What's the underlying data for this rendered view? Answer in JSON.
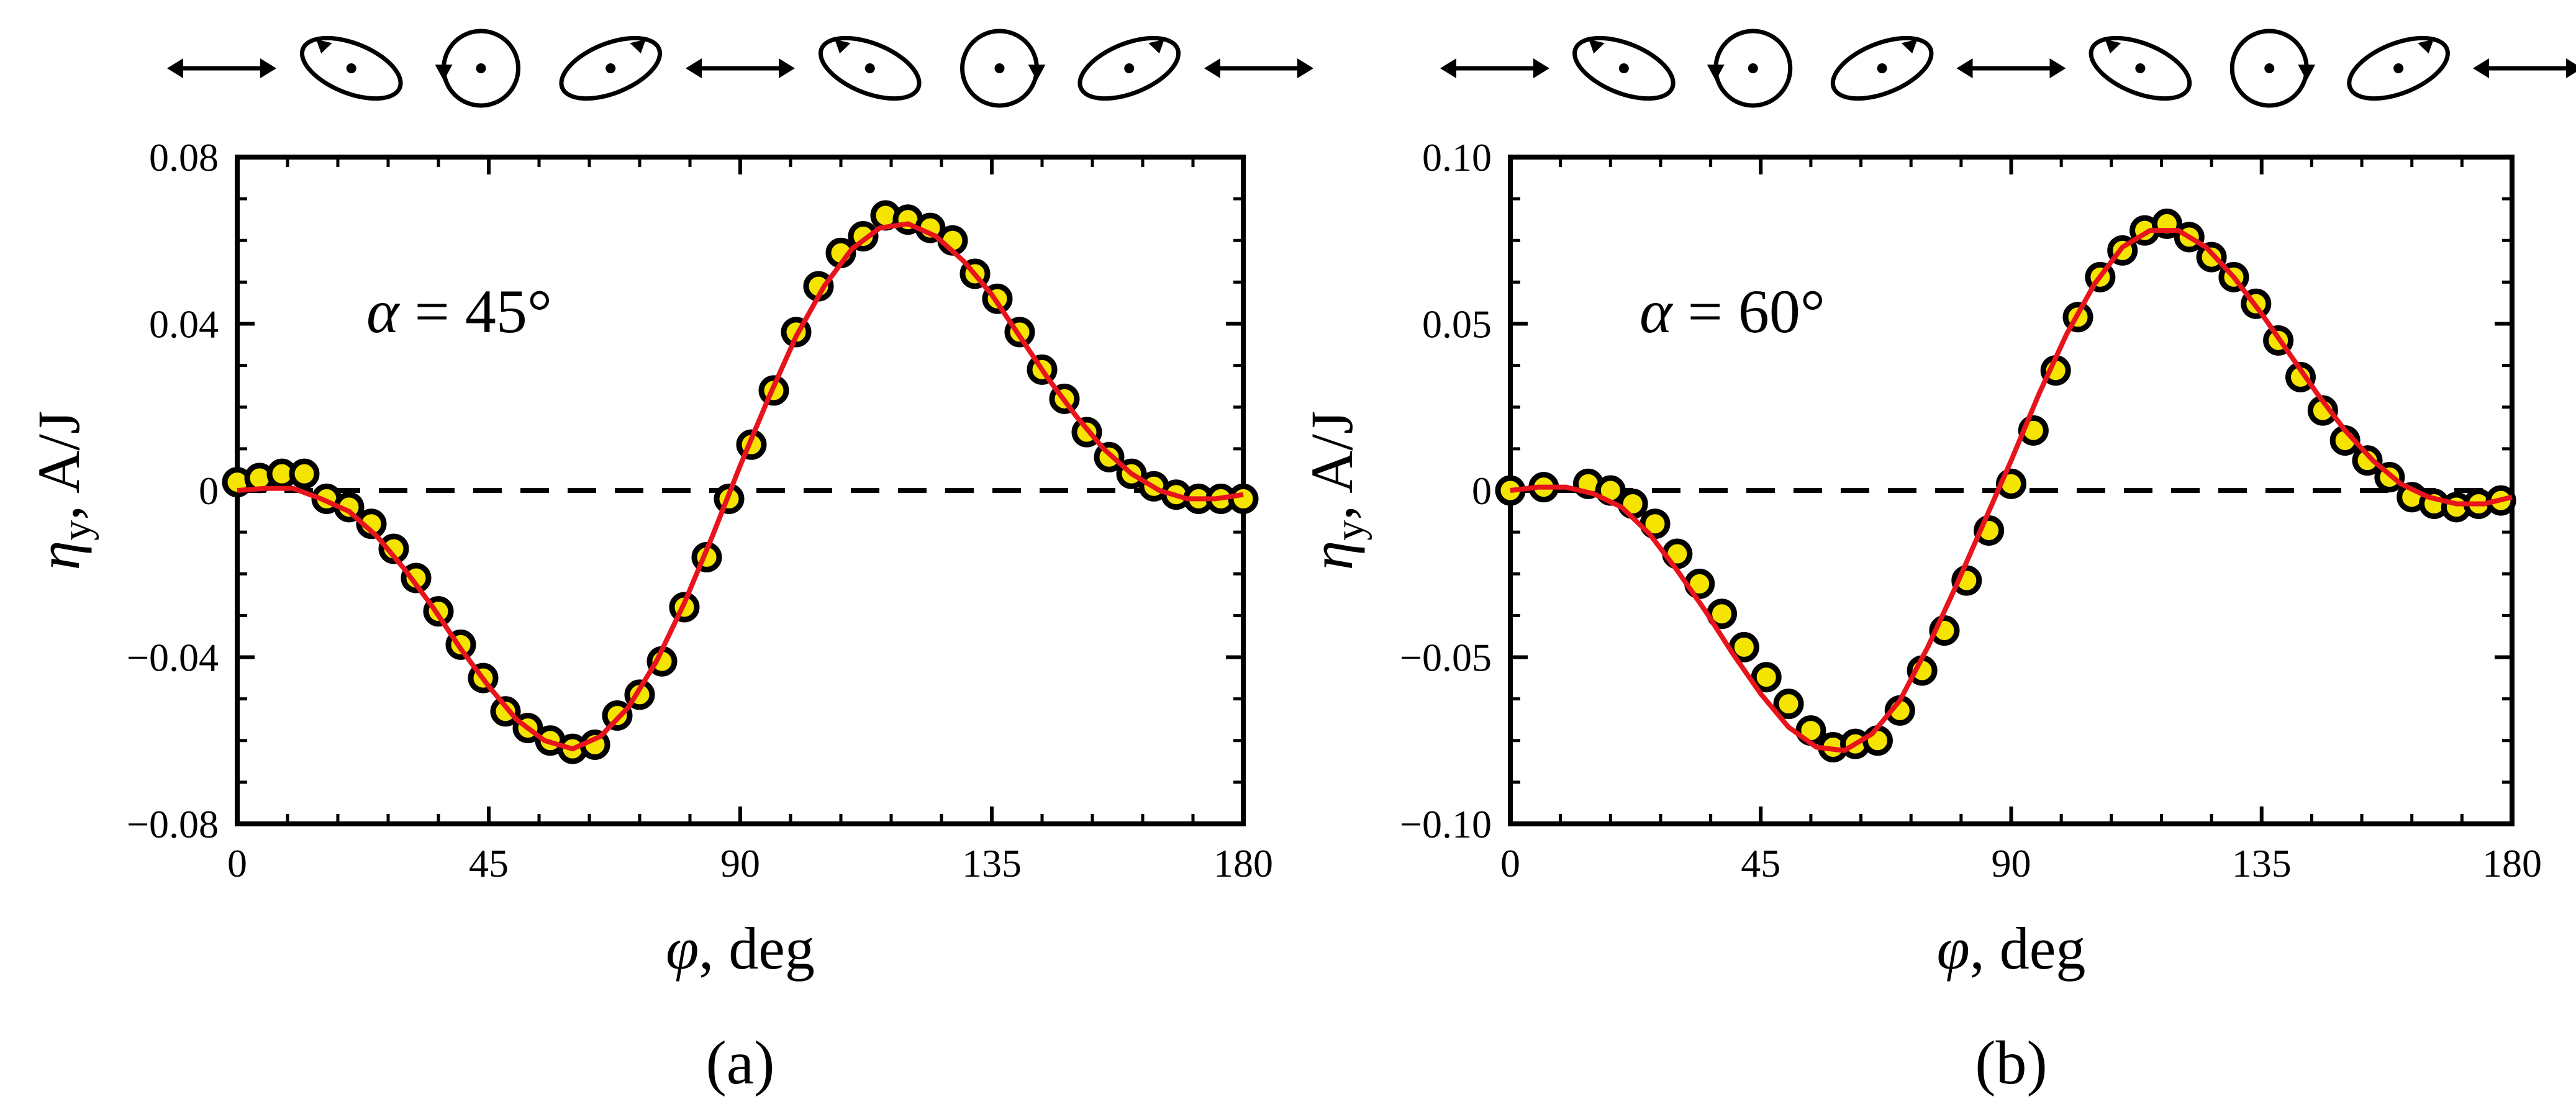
{
  "chart_data": [
    {
      "type": "scatter",
      "panel_label": "(a)",
      "annotation": {
        "symbol": "α",
        "text": " = 45°"
      },
      "xlabel": {
        "symbol": "φ",
        "text": ", deg"
      },
      "ylabel": {
        "symbol": "η",
        "sub": "y",
        "text": ", A/J"
      },
      "xlim": [
        0,
        180
      ],
      "ylim": [
        -0.08,
        0.08
      ],
      "xticks": [
        0,
        45,
        90,
        135,
        180
      ],
      "xtick_labels": [
        "0",
        "45",
        "90",
        "135",
        "180"
      ],
      "yticks": [
        -0.08,
        -0.04,
        0,
        0.04,
        0.08
      ],
      "ytick_labels": [
        "−0.08",
        "−0.04",
        "0",
        "0.04",
        "0.08"
      ],
      "reference_line": {
        "y": 0,
        "style": "dashed"
      },
      "polarization_icons": [
        "linear",
        "ellipse-ccw",
        "circle-ccw",
        "ellipse-cw",
        "linear",
        "ellipse-ccw",
        "circle-cw",
        "ellipse-cw",
        "linear"
      ],
      "series": [
        {
          "name": "measured",
          "marker": "circle",
          "fill": "#f5e400",
          "edge": "#000000",
          "x": [
            0,
            4,
            8,
            12,
            16,
            20,
            24,
            28,
            32,
            36,
            40,
            44,
            48,
            52,
            56,
            60,
            64,
            68,
            72,
            76,
            80,
            84,
            88,
            92,
            96,
            100,
            104,
            108,
            112,
            116,
            120,
            124,
            128,
            132,
            136,
            140,
            144,
            148,
            152,
            156,
            160,
            164,
            168,
            172,
            176,
            180
          ],
          "y": [
            0.002,
            0.003,
            0.004,
            0.004,
            -0.002,
            -0.004,
            -0.008,
            -0.014,
            -0.021,
            -0.029,
            -0.037,
            -0.045,
            -0.053,
            -0.057,
            -0.06,
            -0.062,
            -0.061,
            -0.054,
            -0.049,
            -0.041,
            -0.028,
            -0.016,
            -0.002,
            0.011,
            0.024,
            0.038,
            0.049,
            0.057,
            0.061,
            0.066,
            0.065,
            0.063,
            0.06,
            0.052,
            0.046,
            0.038,
            0.029,
            0.022,
            0.014,
            0.008,
            0.004,
            0.001,
            -0.001,
            -0.002,
            -0.002,
            -0.002
          ]
        },
        {
          "name": "fit",
          "style": "line",
          "color": "#e8141c",
          "x": [
            0,
            5,
            10,
            15,
            20,
            25,
            30,
            35,
            40,
            45,
            50,
            55,
            60,
            65,
            70,
            75,
            80,
            85,
            90,
            95,
            100,
            105,
            110,
            115,
            120,
            125,
            130,
            135,
            140,
            145,
            150,
            155,
            160,
            165,
            170,
            175,
            180
          ],
          "y": [
            0.0,
            0.0005,
            0.0005,
            -0.002,
            -0.005,
            -0.011,
            -0.019,
            -0.028,
            -0.038,
            -0.047,
            -0.055,
            -0.06,
            -0.062,
            -0.059,
            -0.052,
            -0.041,
            -0.027,
            -0.011,
            0.006,
            0.022,
            0.037,
            0.049,
            0.058,
            0.063,
            0.064,
            0.061,
            0.055,
            0.047,
            0.037,
            0.027,
            0.018,
            0.01,
            0.004,
            0.0,
            -0.002,
            -0.002,
            -0.001
          ]
        }
      ]
    },
    {
      "type": "scatter",
      "panel_label": "(b)",
      "annotation": {
        "symbol": "α",
        "text": " = 60°"
      },
      "xlabel": {
        "symbol": "φ",
        "text": ", deg"
      },
      "ylabel": {
        "symbol": "η",
        "sub": "y",
        "text": ", A/J"
      },
      "xlim": [
        0,
        180
      ],
      "ylim": [
        -0.1,
        0.1
      ],
      "xticks": [
        0,
        45,
        90,
        135,
        180
      ],
      "xtick_labels": [
        "0",
        "45",
        "90",
        "135",
        "180"
      ],
      "yticks": [
        -0.1,
        -0.05,
        0,
        0.05,
        0.1
      ],
      "ytick_labels": [
        "−0.10",
        "−0.05",
        "0",
        "0.05",
        "0.10"
      ],
      "reference_line": {
        "y": 0,
        "style": "dashed"
      },
      "polarization_icons": [
        "linear",
        "ellipse-ccw",
        "circle-ccw",
        "ellipse-cw",
        "linear",
        "ellipse-ccw",
        "circle-cw",
        "ellipse-cw",
        "linear"
      ],
      "series": [
        {
          "name": "measured",
          "marker": "circle",
          "fill": "#f5e400",
          "edge": "#000000",
          "x": [
            0,
            6,
            14,
            18,
            22,
            26,
            30,
            34,
            38,
            42,
            46,
            50,
            54,
            58,
            62,
            66,
            70,
            74,
            78,
            82,
            86,
            90,
            94,
            98,
            102,
            106,
            110,
            114,
            118,
            122,
            126,
            130,
            134,
            138,
            142,
            146,
            150,
            154,
            158,
            162,
            166,
            170,
            174,
            178
          ],
          "y": [
            0.0,
            0.001,
            0.002,
            0.0,
            -0.004,
            -0.01,
            -0.019,
            -0.028,
            -0.037,
            -0.047,
            -0.056,
            -0.064,
            -0.072,
            -0.077,
            -0.076,
            -0.075,
            -0.066,
            -0.054,
            -0.042,
            -0.027,
            -0.012,
            0.002,
            0.018,
            0.036,
            0.052,
            0.064,
            0.072,
            0.078,
            0.08,
            0.076,
            0.07,
            0.064,
            0.056,
            0.045,
            0.034,
            0.024,
            0.015,
            0.009,
            0.004,
            -0.002,
            -0.004,
            -0.005,
            -0.004,
            -0.003
          ]
        },
        {
          "name": "fit",
          "style": "line",
          "color": "#e8141c",
          "x": [
            0,
            5,
            10,
            15,
            20,
            25,
            30,
            35,
            40,
            45,
            50,
            55,
            60,
            65,
            70,
            75,
            80,
            85,
            90,
            95,
            100,
            105,
            110,
            115,
            120,
            125,
            130,
            135,
            140,
            145,
            150,
            155,
            160,
            165,
            170,
            175,
            180
          ],
          "y": [
            0.0,
            0.001,
            0.001,
            -0.001,
            -0.005,
            -0.013,
            -0.024,
            -0.036,
            -0.049,
            -0.061,
            -0.071,
            -0.077,
            -0.078,
            -0.073,
            -0.063,
            -0.047,
            -0.029,
            -0.01,
            0.009,
            0.029,
            0.047,
            0.062,
            0.073,
            0.078,
            0.078,
            0.073,
            0.064,
            0.053,
            0.041,
            0.029,
            0.018,
            0.009,
            0.002,
            -0.002,
            -0.004,
            -0.004,
            -0.002
          ]
        }
      ]
    }
  ]
}
